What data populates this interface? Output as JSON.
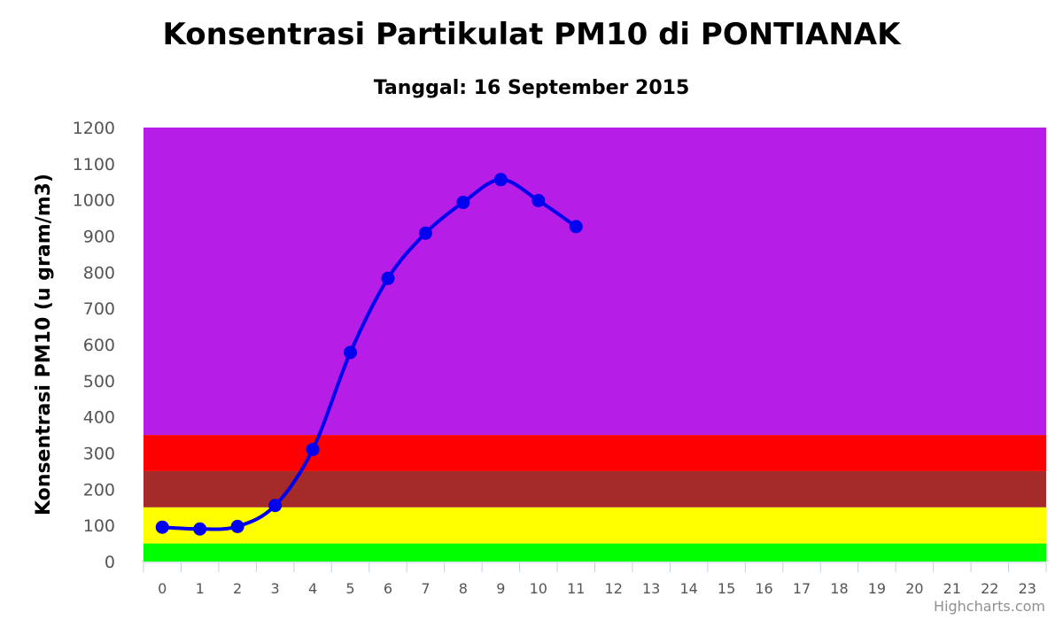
{
  "chart_data": {
    "type": "line",
    "title": "Konsentrasi Partikulat PM10 di PONTIANAK",
    "subtitle": "Tanggal: 16 September 2015",
    "ylabel": "Konsentrasi PM10 (u gram/m3)",
    "xlabel": "",
    "ylim": [
      0,
      1200
    ],
    "y_ticks": [
      0,
      100,
      200,
      300,
      400,
      500,
      600,
      700,
      800,
      900,
      1000,
      1100,
      1200
    ],
    "categories": [
      "0",
      "1",
      "2",
      "3",
      "4",
      "5",
      "6",
      "7",
      "8",
      "9",
      "10",
      "11",
      "12",
      "13",
      "14",
      "15",
      "16",
      "17",
      "18",
      "19",
      "20",
      "21",
      "22",
      "23"
    ],
    "series": [
      {
        "x": [
          0,
          1,
          2,
          3,
          4,
          5,
          6,
          7,
          8,
          9,
          10,
          11
        ],
        "values": [
          95,
          90,
          97,
          155,
          310,
          578,
          783,
          908,
          993,
          1056,
          998,
          926
        ],
        "color": "#0000ee"
      }
    ],
    "bands": [
      {
        "from": 0,
        "to": 50,
        "color": "#00ff00"
      },
      {
        "from": 50,
        "to": 150,
        "color": "#ffff00"
      },
      {
        "from": 150,
        "to": 250,
        "color": "#a52a2a"
      },
      {
        "from": 250,
        "to": 350,
        "color": "#ff0000"
      },
      {
        "from": 350,
        "to": 1200,
        "color": "#b61de6"
      }
    ],
    "grid": false,
    "legend": "none"
  },
  "credits": "Highcharts.com"
}
